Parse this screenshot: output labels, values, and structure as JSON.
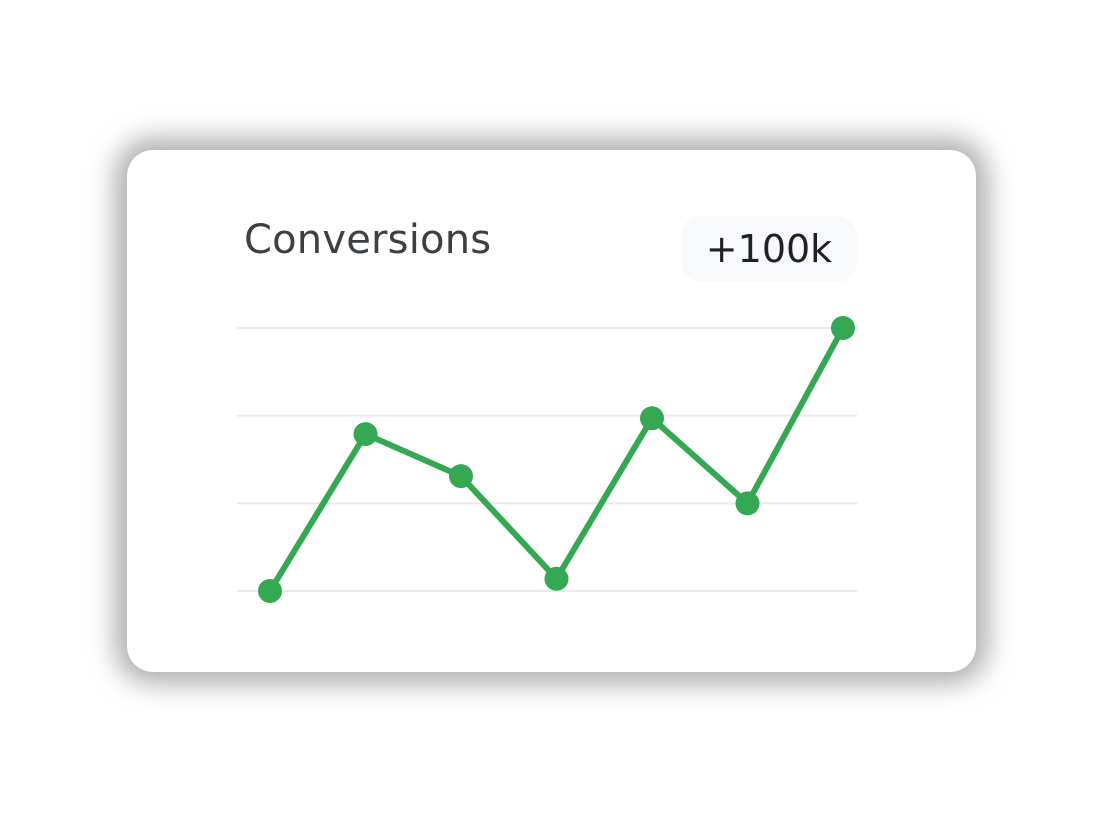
{
  "card": {
    "title": "Conversions",
    "badge": "+100k"
  },
  "colors": {
    "line": "#34a853",
    "grid": "#e8eaed",
    "title": "#3c4043",
    "badge_bg": "#f8f9fa"
  },
  "chart_data": {
    "type": "line",
    "title": "Conversions",
    "xlabel": "",
    "ylabel": "",
    "x": [
      1,
      2,
      3,
      4,
      5,
      6,
      7
    ],
    "series": [
      {
        "values": [
          0.0,
          1.79,
          1.31,
          0.14,
          1.97,
          1.0,
          3.0
        ]
      }
    ],
    "ylim": [
      0,
      3
    ],
    "grid": true,
    "gridlines_y": [
      0,
      1,
      2,
      3
    ],
    "legend": "none"
  }
}
